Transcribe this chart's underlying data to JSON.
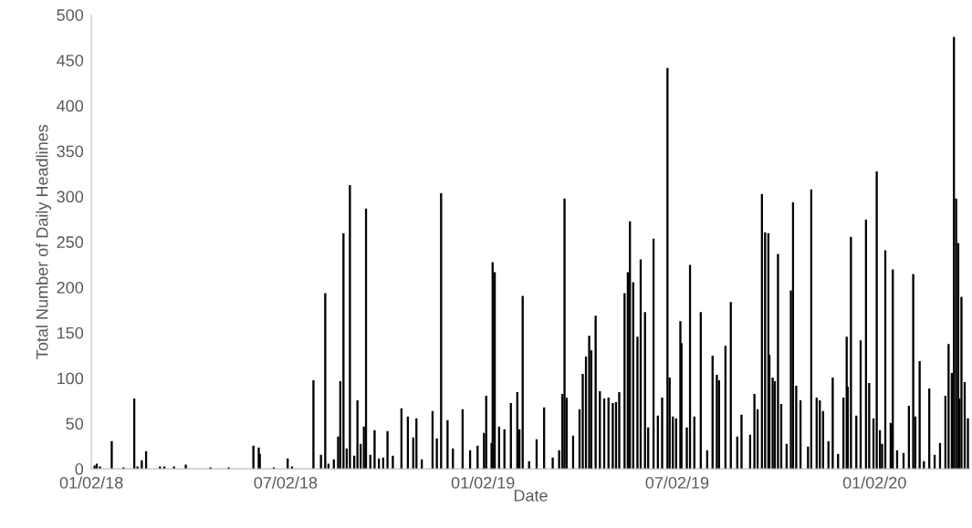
{
  "chart_data": {
    "type": "bar",
    "xlabel": "Date",
    "ylabel": "Total Number of Daily Headlines",
    "color": "#000000",
    "grid": false,
    "xlim": [
      "2018-01-02",
      "2020-03-31"
    ],
    "xticks": [
      {
        "value": "2018-01-02",
        "label": "01/02/18"
      },
      {
        "value": "2018-07-02",
        "label": "07/02/18"
      },
      {
        "value": "2019-01-02",
        "label": "01/02/19"
      },
      {
        "value": "2019-07-02",
        "label": "07/02/19"
      },
      {
        "value": "2020-01-02",
        "label": "01/02/20"
      }
    ],
    "ylim": [
      0,
      500
    ],
    "yticks": [
      0,
      50,
      100,
      150,
      200,
      250,
      300,
      350,
      400,
      450,
      500
    ],
    "x": [
      "2018-01-05",
      "2018-01-07",
      "2018-01-10",
      "2018-01-21",
      "2018-02-01",
      "2018-02-11",
      "2018-02-14",
      "2018-02-18",
      "2018-02-22",
      "2018-03-07",
      "2018-03-11",
      "2018-03-20",
      "2018-03-31",
      "2018-04-23",
      "2018-05-10",
      "2018-06-02",
      "2018-06-07",
      "2018-06-08",
      "2018-06-21",
      "2018-07-04",
      "2018-07-08",
      "2018-07-28",
      "2018-08-04",
      "2018-08-08",
      "2018-08-11",
      "2018-08-16",
      "2018-08-20",
      "2018-08-22",
      "2018-08-25",
      "2018-08-28",
      "2018-08-31",
      "2018-09-04",
      "2018-09-07",
      "2018-09-10",
      "2018-09-13",
      "2018-09-15",
      "2018-09-19",
      "2018-09-23",
      "2018-09-27",
      "2018-10-01",
      "2018-10-05",
      "2018-10-10",
      "2018-10-18",
      "2018-10-24",
      "2018-10-29",
      "2018-11-01",
      "2018-11-06",
      "2018-11-16",
      "2018-11-20",
      "2018-11-24",
      "2018-11-30",
      "2018-12-05",
      "2018-12-14",
      "2018-12-21",
      "2018-12-28",
      "2019-01-03",
      "2019-01-05",
      "2019-01-10",
      "2019-01-11",
      "2019-01-13",
      "2019-01-17",
      "2019-01-22",
      "2019-01-28",
      "2019-02-03",
      "2019-02-05",
      "2019-02-08",
      "2019-02-14",
      "2019-02-21",
      "2019-02-28",
      "2019-03-08",
      "2019-03-14",
      "2019-03-17",
      "2019-03-19",
      "2019-03-21",
      "2019-03-27",
      "2019-04-02",
      "2019-04-05",
      "2019-04-08",
      "2019-04-11",
      "2019-04-13",
      "2019-04-17",
      "2019-04-21",
      "2019-04-25",
      "2019-04-29",
      "2019-05-03",
      "2019-05-06",
      "2019-05-09",
      "2019-05-14",
      "2019-05-17",
      "2019-05-19",
      "2019-05-22",
      "2019-05-26",
      "2019-05-29",
      "2019-06-02",
      "2019-06-05",
      "2019-06-10",
      "2019-06-14",
      "2019-06-18",
      "2019-06-23",
      "2019-06-25",
      "2019-06-28",
      "2019-07-01",
      "2019-07-05",
      "2019-07-06",
      "2019-07-11",
      "2019-07-14",
      "2019-07-18",
      "2019-07-24",
      "2019-07-30",
      "2019-08-04",
      "2019-08-08",
      "2019-08-10",
      "2019-08-16",
      "2019-08-21",
      "2019-08-27",
      "2019-08-31",
      "2019-09-08",
      "2019-09-12",
      "2019-09-15",
      "2019-09-19",
      "2019-09-22",
      "2019-09-25",
      "2019-09-26",
      "2019-09-29",
      "2019-10-01",
      "2019-10-04",
      "2019-10-07",
      "2019-10-12",
      "2019-10-16",
      "2019-10-18",
      "2019-10-21",
      "2019-10-25",
      "2019-11-01",
      "2019-11-04",
      "2019-11-09",
      "2019-11-12",
      "2019-11-15",
      "2019-11-20",
      "2019-11-24",
      "2019-11-29",
      "2019-12-04",
      "2019-12-07",
      "2019-12-08",
      "2019-12-11",
      "2019-12-16",
      "2019-12-20",
      "2019-12-25",
      "2019-12-28",
      "2020-01-01",
      "2020-01-04",
      "2020-01-07",
      "2020-01-09",
      "2020-01-12",
      "2020-01-17",
      "2020-01-19",
      "2020-01-23",
      "2020-01-29",
      "2020-02-03",
      "2020-02-07",
      "2020-02-09",
      "2020-02-13",
      "2020-02-17",
      "2020-02-22",
      "2020-02-27",
      "2020-03-03",
      "2020-03-08",
      "2020-03-11",
      "2020-03-14",
      "2020-03-16",
      "2020-03-18",
      "2020-03-20",
      "2020-03-21",
      "2020-03-23",
      "2020-03-26",
      "2020-03-29"
    ],
    "values": [
      3,
      5,
      2,
      30,
      1,
      77,
      2,
      9,
      19,
      2,
      2,
      2,
      4,
      1,
      1,
      25,
      23,
      16,
      1,
      11,
      2,
      97,
      15,
      193,
      5,
      10,
      35,
      96,
      259,
      22,
      312,
      14,
      75,
      27,
      46,
      286,
      15,
      42,
      11,
      12,
      41,
      14,
      66,
      57,
      34,
      55,
      10,
      63,
      33,
      303,
      53,
      22,
      65,
      20,
      25,
      39,
      80,
      28,
      227,
      216,
      46,
      43,
      72,
      84,
      43,
      190,
      8,
      32,
      67,
      12,
      20,
      82,
      297,
      78,
      36,
      65,
      104,
      123,
      146,
      130,
      168,
      85,
      77,
      78,
      72,
      73,
      84,
      193,
      216,
      272,
      205,
      145,
      230,
      172,
      45,
      253,
      58,
      78,
      441,
      100,
      57,
      55,
      162,
      138,
      45,
      224,
      57,
      172,
      20,
      124,
      103,
      97,
      135,
      183,
      35,
      59,
      37,
      82,
      65,
      302,
      260,
      259,
      125,
      100,
      96,
      236,
      71,
      27,
      196,
      293,
      91,
      75,
      24,
      307,
      78,
      75,
      63,
      30,
      100,
      16,
      78,
      145,
      90,
      255,
      58,
      141,
      274,
      94,
      55,
      327,
      42,
      27,
      240,
      50,
      219,
      20,
      17,
      69,
      214,
      57,
      118,
      8,
      88,
      15,
      28,
      80,
      137,
      105,
      475,
      297,
      248,
      77,
      189,
      95,
      55
    ]
  }
}
